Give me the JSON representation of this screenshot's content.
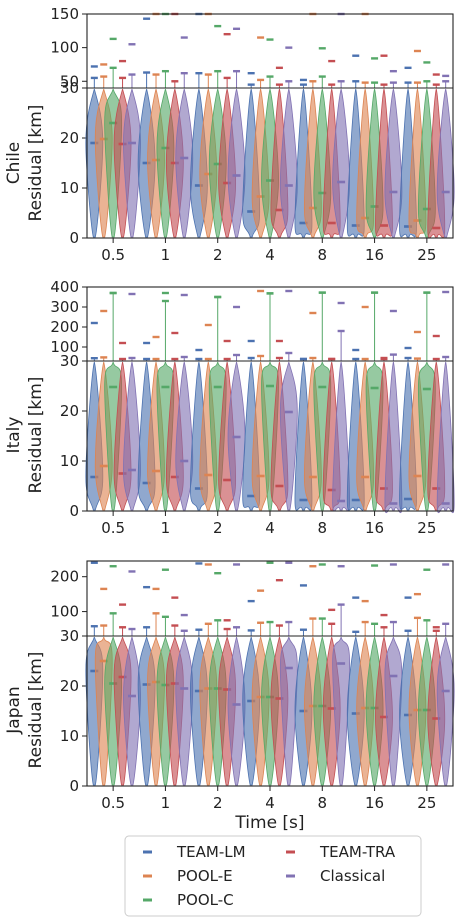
{
  "colors": {
    "TEAM-LM": "#4c72b0",
    "POOL-E": "#dd8452",
    "POOL-C": "#55a868",
    "TEAM-TRA": "#c44e52",
    "Classical": "#8172b3"
  },
  "chart_data": {
    "type": "violin",
    "categories": [
      "0.5",
      "1",
      "2",
      "4",
      "8",
      "16",
      "25"
    ],
    "xlabel": "Time [s]",
    "legend": {
      "placement": "bottom-center",
      "entries": [
        "TEAM-LM",
        "POOL-E",
        "POOL-C",
        "TEAM-TRA",
        "Classical"
      ]
    },
    "series_names": [
      "TEAM-LM",
      "POOL-E",
      "POOL-C",
      "TEAM-TRA",
      "Classical"
    ],
    "panels": [
      {
        "region": "Chile",
        "ylabel": "Residual [km]",
        "upper_ylim": [
          40,
          150
        ],
        "upper_ticks": [
          50,
          100,
          150
        ],
        "lower_ylim": [
          0,
          30
        ],
        "lower_ticks": [
          0,
          10,
          20,
          30
        ],
        "medians": [
          [
            19.0,
            15.0,
            10.5,
            5.3,
            3.0,
            2.5,
            2.3
          ],
          [
            19.8,
            15.6,
            12.8,
            8.3,
            6.0,
            4.0,
            3.5
          ],
          [
            23.0,
            18.0,
            14.8,
            11.5,
            9.0,
            6.3,
            5.8
          ],
          [
            18.8,
            15.0,
            11.0,
            5.6,
            3.0,
            2.5,
            2.0
          ],
          [
            19.0,
            16.0,
            12.5,
            10.5,
            11.2,
            9.2,
            9.2
          ]
        ],
        "upper_marks": [
          [
            [
              55,
              72
            ],
            [
              63,
              143
            ],
            [
              62,
              150
            ],
            [
              45,
              62
            ],
            [
              45,
              52
            ],
            [
              50,
              88
            ],
            [
              48,
              70
            ]
          ],
          [
            [
              57,
              75
            ],
            [
              60,
              150
            ],
            [
              60,
              150
            ],
            [
              52,
              115
            ],
            [
              50,
              150
            ],
            [
              48,
              150
            ],
            [
              48,
              95
            ]
          ],
          [
            [
              70,
              113
            ],
            [
              65,
              150
            ],
            [
              65,
              132
            ],
            [
              57,
              112
            ],
            [
              57,
              99
            ],
            [
              48,
              84
            ],
            [
              50,
              78
            ]
          ],
          [
            [
              55,
              80
            ],
            [
              50,
              150
            ],
            [
              55,
              120
            ],
            [
              45,
              70
            ],
            [
              45,
              80
            ],
            [
              45,
              88
            ],
            [
              45,
              60
            ]
          ],
          [
            [
              60,
              105
            ],
            [
              62,
              115
            ],
            [
              65,
              128
            ],
            [
              50,
              100
            ],
            [
              50,
              150
            ],
            [
              48,
              65
            ],
            [
              50,
              58
            ]
          ]
        ]
      },
      {
        "region": "Italy",
        "ylabel": "Residual [km]",
        "upper_ylim": [
          30,
          400
        ],
        "upper_ticks": [
          100,
          200,
          300,
          400
        ],
        "lower_ylim": [
          0,
          30
        ],
        "lower_ticks": [
          0,
          10,
          20,
          30
        ],
        "medians": [
          [
            6.8,
            5.6,
            4.5,
            3.0,
            2.2,
            2.2,
            2.4
          ],
          [
            9.0,
            8.0,
            7.2,
            7.0,
            6.8,
            6.8,
            7.0
          ],
          [
            24.8,
            24.8,
            24.8,
            25.0,
            24.8,
            24.6,
            24.4
          ],
          [
            7.5,
            6.8,
            6.2,
            5.0,
            4.2,
            4.5,
            4.5
          ],
          [
            8.2,
            10.0,
            14.8,
            19.8,
            2.0,
            1.5,
            1.5
          ]
        ],
        "upper_marks": [
          [
            [
              44,
              220
            ],
            [
              40,
              120
            ],
            [
              40,
              85
            ],
            [
              45,
              130
            ],
            [
              40,
              40
            ],
            [
              40,
              85
            ],
            [
              45,
              95
            ]
          ],
          [
            [
              48,
              280
            ],
            [
              40,
              150
            ],
            [
              40,
              210
            ],
            [
              55,
              380
            ],
            [
              45,
              270
            ],
            [
              40,
              300
            ],
            [
              42,
              175
            ]
          ],
          [
            [
              370,
              370
            ],
            [
              330,
              370
            ],
            [
              350,
              350
            ],
            [
              368,
              368
            ],
            [
              372,
              372
            ],
            [
              372,
              372
            ],
            [
              372,
              372
            ]
          ],
          [
            [
              40,
              120
            ],
            [
              40,
              170
            ],
            [
              40,
              130
            ],
            [
              45,
              130
            ],
            [
              40,
              40
            ],
            [
              40,
              45
            ],
            [
              40,
              155
            ]
          ],
          [
            [
              45,
              365
            ],
            [
              50,
              360
            ],
            [
              60,
              300
            ],
            [
              70,
              380
            ],
            [
              180,
              320
            ],
            [
              62,
              280
            ],
            [
              50,
              375
            ]
          ]
        ]
      },
      {
        "region": "Japan",
        "ylabel": "Residual [km]",
        "upper_ylim": [
          30,
          245
        ],
        "upper_ticks": [
          100,
          200
        ],
        "lower_ylim": [
          0,
          30
        ],
        "lower_ticks": [
          0,
          10,
          20,
          30
        ],
        "medians": [
          [
            23.0,
            20.3,
            19.0,
            17.0,
            15.0,
            14.5,
            14.2
          ],
          [
            25.0,
            20.8,
            19.5,
            17.8,
            16.0,
            15.6,
            15.2
          ],
          [
            20.5,
            20.2,
            19.5,
            17.8,
            16.0,
            15.6,
            15.2
          ],
          [
            21.8,
            20.5,
            19.3,
            17.5,
            15.5,
            13.8,
            13.5
          ],
          [
            18.0,
            19.5,
            16.3,
            23.6,
            24.5,
            22.0,
            19.0
          ]
        ],
        "upper_marks": [
          [
            [
              58,
              240
            ],
            [
              55,
              170
            ],
            [
              48,
              238
            ],
            [
              46,
              130
            ],
            [
              48,
              175
            ],
            [
              42,
              140
            ],
            [
              45,
              140
            ]
          ],
          [
            [
              60,
              165
            ],
            [
              95,
              165
            ],
            [
              65,
              235
            ],
            [
              68,
              160
            ],
            [
              80,
              230
            ],
            [
              70,
              130
            ],
            [
              82,
              150
            ]
          ],
          [
            [
              95,
              230
            ],
            [
              85,
              220
            ],
            [
              75,
              210
            ],
            [
              70,
              240
            ],
            [
              80,
              235
            ],
            [
              65,
              232
            ],
            [
              75,
              220
            ]
          ],
          [
            [
              55,
              120
            ],
            [
              60,
              140
            ],
            [
              50,
              75
            ],
            [
              60,
              190
            ],
            [
              65,
              105
            ],
            [
              55,
              90
            ],
            [
              45,
              55
            ]
          ],
          [
            [
              50,
              215
            ],
            [
              45,
              90
            ],
            [
              55,
              235
            ],
            [
              70,
              240
            ],
            [
              120,
              230
            ],
            [
              70,
              235
            ],
            [
              65,
              235
            ]
          ]
        ]
      }
    ]
  }
}
